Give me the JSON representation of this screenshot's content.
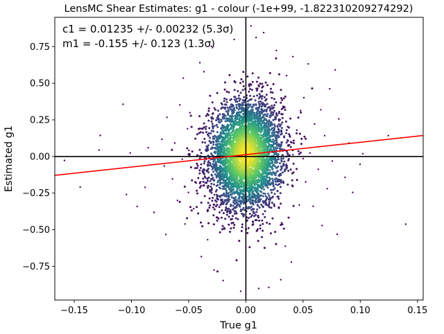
{
  "chart_data": {
    "type": "scatter",
    "title": "LensMC Shear Estimates: g1  - colour (-1e+99, -1.822310209274292)",
    "xlabel": "True g1",
    "ylabel": "Estimated g1",
    "xlim": [
      -0.167,
      0.155
    ],
    "ylim": [
      -0.98,
      0.95
    ],
    "xticks": [
      -0.15,
      -0.1,
      -0.05,
      0.0,
      0.05,
      0.1,
      0.15
    ],
    "xtick_labels": [
      "−0.15",
      "−0.10",
      "−0.05",
      "0.00",
      "0.05",
      "0.10",
      "0.15"
    ],
    "yticks": [
      -0.75,
      -0.5,
      -0.25,
      0.0,
      0.25,
      0.5,
      0.75
    ],
    "ytick_labels": [
      "−0.75",
      "−0.50",
      "−0.25",
      "0.00",
      "0.25",
      "0.50",
      "0.75"
    ],
    "annotations": [
      "c1 = 0.01235 +/- 0.00232 (5.3σ)",
      "m1 = -0.155 +/- 0.123 (1.3σ)"
    ],
    "fit_line": {
      "intercept": 0.01235,
      "slope": 0.845
    },
    "reference_lines": {
      "x": 0.0,
      "y": 0.0
    },
    "colors": {
      "fit": "#ff0000",
      "reference": "#000000",
      "density_low": "#440154",
      "density_mid": "#21918c",
      "density_high": "#fde725"
    },
    "grid": false,
    "colormap": "viridis (point density)",
    "points": [
      [
        -0.1586,
        -0.0272
      ],
      [
        -0.1448,
        -0.2091
      ],
      [
        -0.1273,
        0.1437
      ],
      [
        -0.1283,
        0.0437
      ],
      [
        -0.1073,
        0.3562
      ],
      [
        -0.1044,
        -0.2596
      ],
      [
        -0.1011,
        0.0238
      ],
      [
        -0.095,
        -0.3412
      ],
      [
        -0.0881,
        -0.2103
      ],
      [
        -0.0853,
        0.0598
      ],
      [
        -0.0803,
        -0.3818
      ],
      [
        -0.0734,
        0.1174
      ],
      [
        -0.0713,
        -0.0651
      ],
      [
        -0.07,
        -0.5327
      ],
      [
        -0.069,
        0.2674
      ],
      [
        -0.0642,
        -0.1531
      ],
      [
        -0.0621,
        0.0915
      ],
      [
        -0.0598,
        -0.3002
      ],
      [
        -0.0577,
        0.3521
      ],
      [
        -0.0556,
        -0.0189
      ],
      [
        -0.0547,
        0.5345
      ],
      [
        -0.0532,
        -0.4612
      ],
      [
        -0.051,
        0.1892
      ],
      [
        -0.0502,
        -0.2456
      ],
      [
        0.0507,
        0.4012
      ],
      [
        0.0523,
        -0.1734
      ],
      [
        0.0546,
        0.6321
      ],
      [
        0.056,
        0.0234
      ],
      [
        0.0589,
        -0.3398
      ],
      [
        0.0601,
        0.2213
      ],
      [
        0.0633,
        -0.0876
      ],
      [
        0.0655,
        0.3189
      ],
      [
        0.0667,
        -0.4712
      ],
      [
        0.0689,
        0.1421
      ],
      [
        0.0712,
        -0.2198
      ],
      [
        0.0733,
        0.4621
      ],
      [
        0.0755,
        -0.0312
      ],
      [
        0.0781,
        0.5912
      ],
      [
        0.0798,
        -0.5312
      ],
      [
        0.0812,
        0.2567
      ],
      [
        0.0867,
        -0.1423
      ],
      [
        0.0901,
        0.0913
      ],
      [
        0.0934,
        -0.2456
      ],
      [
        0.0998,
        -0.0534
      ],
      [
        0.1023,
        0.0187
      ],
      [
        0.1245,
        0.1423
      ],
      [
        0.1398,
        -0.4621
      ],
      [
        0.0411,
        0.6812
      ],
      [
        -0.0402,
        0.6401
      ],
      [
        0.0398,
        -0.7213
      ],
      [
        -0.0389,
        -0.6834
      ],
      [
        0.0412,
        0.0123
      ],
      [
        -0.0421,
        0.0089
      ],
      [
        0.0305,
        -0.8412
      ],
      [
        -0.0301,
        0.7512
      ],
      [
        0.0201,
        -0.8934
      ],
      [
        -0.0198,
        -0.8467
      ],
      [
        0.0156,
        0.8456
      ],
      [
        0.0045,
        0.8912
      ],
      [
        -0.0045,
        -0.9201
      ],
      [
        0.0089,
        0.8123
      ],
      [
        -0.0102,
        0.7989
      ],
      [
        0.0112,
        -0.9012
      ],
      [
        0.0267,
        0.7234
      ],
      [
        -0.0278,
        -0.7745
      ],
      [
        0.0356,
        0.5523
      ],
      [
        -0.0367,
        0.5789
      ],
      [
        0.0345,
        -0.6123
      ],
      [
        -0.0334,
        -0.5678
      ],
      [
        0.0467,
        -0.3312
      ],
      [
        -0.0456,
        -0.3567
      ],
      [
        0.0478,
        0.3134
      ],
      [
        -0.0489,
        0.2987
      ],
      [
        0.0445,
        0.1789
      ],
      [
        -0.0434,
        -0.1812
      ],
      [
        0.0501,
        -0.0145
      ],
      [
        -0.0498,
        0.0412
      ],
      [
        0.0289,
        0.2423
      ],
      [
        -0.0276,
        -0.2611
      ],
      [
        0.0312,
        -0.4523
      ]
    ]
  }
}
